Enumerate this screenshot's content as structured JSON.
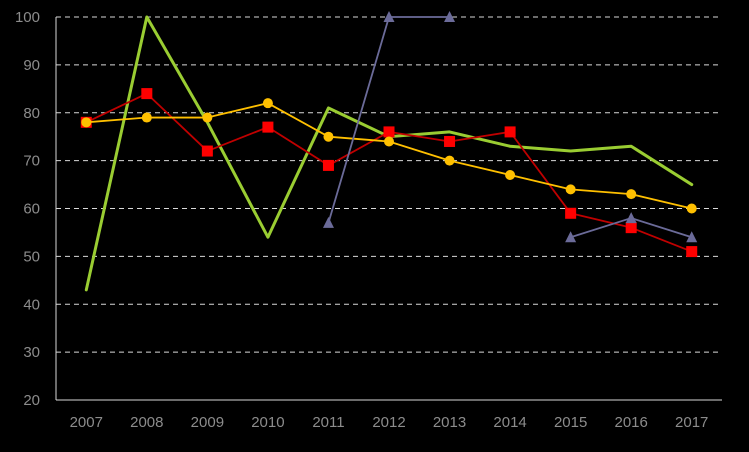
{
  "chart_data": {
    "type": "line",
    "title": "",
    "xlabel": "",
    "ylabel": "",
    "categories": [
      "2007",
      "2008",
      "2009",
      "2010",
      "2011",
      "2012",
      "2013",
      "2014",
      "2015",
      "2016",
      "2017"
    ],
    "ylim": [
      20,
      100
    ],
    "yticks": [
      "20",
      "30",
      "40",
      "50",
      "60",
      "70",
      "80",
      "90",
      "100"
    ],
    "grid": true,
    "legend": "none",
    "series": [
      {
        "key": "green-line",
        "color": "#9acd32",
        "marker": "none",
        "values": [
          43,
          100,
          78,
          54,
          81,
          75,
          76,
          73,
          72,
          73,
          65
        ]
      },
      {
        "key": "red-squares",
        "color": "#ff0000",
        "line_color": "#c00000",
        "marker": "square",
        "values": [
          78,
          84,
          72,
          77,
          69,
          76,
          74,
          76,
          59,
          56,
          51
        ]
      },
      {
        "key": "yellow-circles",
        "color": "#ffc000",
        "marker": "circle",
        "values": [
          78,
          79,
          79,
          82,
          75,
          74,
          70,
          67,
          64,
          63,
          60
        ]
      },
      {
        "key": "purple-triangles",
        "color": "#6b6b99",
        "marker": "triangle",
        "values": [
          null,
          null,
          null,
          null,
          57,
          100,
          100,
          null,
          54,
          58,
          54
        ]
      }
    ]
  }
}
